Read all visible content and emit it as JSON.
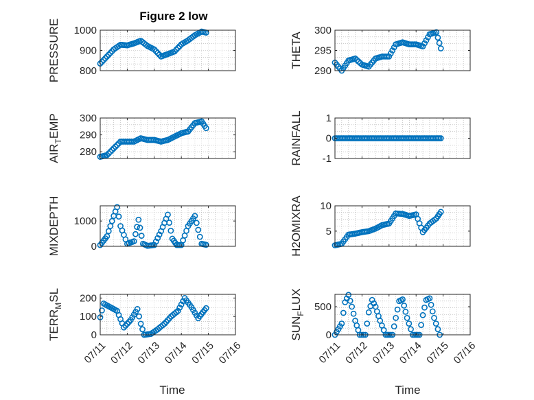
{
  "figure": {
    "title": "Figure 2 low"
  },
  "colors": {
    "marker": "#0072BD",
    "axis": "#262626",
    "grid": "#b0b0b0"
  },
  "chart_data": [
    {
      "id": "pressure",
      "type": "scatter",
      "title": "Figure 2 low",
      "ylabel": "PRESSURE",
      "ylim": [
        800,
        1000
      ],
      "yticks": [
        800,
        900,
        1000
      ],
      "x": [
        "07/11 00:00",
        "07/11 06:00",
        "07/11 12:00",
        "07/11 18:00",
        "07/12 00:00",
        "07/12 06:00",
        "07/12 12:00",
        "07/12 18:00",
        "07/13 00:00",
        "07/13 06:00",
        "07/13 12:00",
        "07/13 18:00",
        "07/14 00:00",
        "07/14 06:00",
        "07/14 12:00",
        "07/14 18:00",
        "07/14 22:00"
      ],
      "y": [
        835,
        870,
        905,
        928,
        925,
        935,
        948,
        922,
        905,
        870,
        882,
        895,
        930,
        950,
        975,
        993,
        988
      ]
    },
    {
      "id": "theta",
      "type": "scatter",
      "ylabel": "THETA",
      "ylim": [
        290,
        300
      ],
      "yticks": [
        290,
        295,
        300
      ],
      "x": [
        "07/11 00:00",
        "07/11 06:00",
        "07/11 12:00",
        "07/11 18:00",
        "07/12 00:00",
        "07/12 06:00",
        "07/12 12:00",
        "07/12 18:00",
        "07/13 00:00",
        "07/13 06:00",
        "07/13 12:00",
        "07/13 18:00",
        "07/14 00:00",
        "07/14 06:00",
        "07/14 12:00",
        "07/14 18:00",
        "07/14 22:00"
      ],
      "y": [
        292,
        290,
        292.5,
        293,
        291.5,
        291,
        293,
        293.5,
        293.5,
        296.5,
        297,
        296.5,
        296.5,
        296,
        299,
        299.5,
        295.5
      ]
    },
    {
      "id": "air_temp",
      "type": "scatter",
      "ylabel": "AIR_TEMP",
      "ylabel_main": "AIR",
      "ylabel_sub": "T",
      "ylabel_rest": "EMP",
      "ylim": [
        276,
        300
      ],
      "yticks": [
        280,
        290,
        300
      ],
      "x": [
        "07/11 00:00",
        "07/11 06:00",
        "07/11 12:00",
        "07/11 18:00",
        "07/12 00:00",
        "07/12 06:00",
        "07/12 12:00",
        "07/12 18:00",
        "07/13 00:00",
        "07/13 06:00",
        "07/13 12:00",
        "07/13 18:00",
        "07/14 00:00",
        "07/14 06:00",
        "07/14 12:00",
        "07/14 18:00",
        "07/14 22:00"
      ],
      "y": [
        277,
        278,
        282,
        286,
        286,
        286,
        288,
        287,
        287,
        286,
        287,
        289,
        291,
        292,
        297,
        298,
        294
      ]
    },
    {
      "id": "rainfall",
      "type": "scatter",
      "ylabel": "RAINFALL",
      "ylim": [
        -1,
        1
      ],
      "yticks": [
        -1,
        0,
        1
      ],
      "x": [
        "07/11 00:00",
        "07/11 06:00",
        "07/11 12:00",
        "07/11 18:00",
        "07/12 00:00",
        "07/12 06:00",
        "07/12 12:00",
        "07/12 18:00",
        "07/13 00:00",
        "07/13 06:00",
        "07/13 12:00",
        "07/13 18:00",
        "07/14 00:00",
        "07/14 06:00",
        "07/14 12:00",
        "07/14 18:00",
        "07/14 22:00"
      ],
      "y": [
        0,
        0,
        0,
        0,
        0,
        0,
        0,
        0,
        0,
        0,
        0,
        0,
        0,
        0,
        0,
        0,
        0
      ]
    },
    {
      "id": "mixdepth",
      "type": "scatter",
      "ylabel": "MIXDEPTH",
      "ylim": [
        0,
        1600
      ],
      "yticks": [
        0,
        1000
      ],
      "x": [
        "07/11 00:00",
        "07/11 06:00",
        "07/11 12:00",
        "07/11 15:00",
        "07/11 18:00",
        "07/12 00:00",
        "07/12 06:00",
        "07/12 10:00",
        "07/12 14:00",
        "07/12 18:00",
        "07/13 00:00",
        "07/13 06:00",
        "07/13 12:00",
        "07/13 16:00",
        "07/13 20:00",
        "07/14 00:00",
        "07/14 06:00",
        "07/14 12:00",
        "07/14 18:00",
        "07/14 22:00"
      ],
      "y": [
        50,
        400,
        1200,
        1550,
        800,
        100,
        200,
        1050,
        100,
        20,
        50,
        600,
        1250,
        300,
        50,
        50,
        800,
        1200,
        100,
        60
      ]
    },
    {
      "id": "h2omixra",
      "type": "scatter",
      "ylabel": "H2OMIXRA",
      "ylim": [
        2,
        10
      ],
      "yticks": [
        5,
        10
      ],
      "x": [
        "07/11 00:00",
        "07/11 06:00",
        "07/11 12:00",
        "07/11 18:00",
        "07/12 00:00",
        "07/12 06:00",
        "07/12 12:00",
        "07/12 18:00",
        "07/13 00:00",
        "07/13 06:00",
        "07/13 12:00",
        "07/13 18:00",
        "07/14 00:00",
        "07/14 06:00",
        "07/14 12:00",
        "07/14 18:00",
        "07/14 22:00"
      ],
      "y": [
        2.2,
        2.5,
        4.3,
        4.5,
        4.8,
        5,
        5.5,
        6.2,
        6.5,
        8.5,
        8.4,
        8.0,
        8.3,
        4.8,
        6.5,
        7.5,
        8.8
      ]
    },
    {
      "id": "terr_msl",
      "type": "scatter",
      "ylabel": "TERR_MSL",
      "ylabel_main": "TERR",
      "ylabel_sub": "M",
      "ylabel_rest": "SL",
      "ylim": [
        0,
        220
      ],
      "yticks": [
        0,
        100,
        200
      ],
      "x": [
        "07/11 00:00",
        "07/11 03:00",
        "07/11 09:00",
        "07/11 15:00",
        "07/11 21:00",
        "07/12 03:00",
        "07/12 09:00",
        "07/12 12:00",
        "07/12 15:00",
        "07/12 21:00",
        "07/13 03:00",
        "07/13 09:00",
        "07/13 15:00",
        "07/13 21:00",
        "07/14 03:00",
        "07/14 09:00",
        "07/14 15:00",
        "07/14 22:00"
      ],
      "y": [
        95,
        170,
        150,
        130,
        40,
        80,
        140,
        60,
        0,
        5,
        30,
        60,
        100,
        130,
        200,
        150,
        90,
        145
      ]
    },
    {
      "id": "sun_flux",
      "type": "scatter",
      "ylabel": "SUN_FLUX",
      "ylabel_main": "SUN",
      "ylabel_sub": "F",
      "ylabel_rest": "LUX",
      "ylim": [
        0,
        720
      ],
      "yticks": [
        0,
        500
      ],
      "x": [
        "07/11 00:00",
        "07/11 06:00",
        "07/11 09:00",
        "07/11 12:00",
        "07/11 15:00",
        "07/11 18:00",
        "07/11 22:00",
        "07/12 03:00",
        "07/12 06:00",
        "07/12 09:00",
        "07/12 12:00",
        "07/12 16:00",
        "07/12 21:00",
        "07/13 03:00",
        "07/13 06:00",
        "07/13 09:00",
        "07/13 12:00",
        "07/13 16:00",
        "07/13 21:00",
        "07/14 03:00",
        "07/14 06:00",
        "07/14 09:00",
        "07/14 12:00",
        "07/14 16:00",
        "07/14 21:00"
      ],
      "y": [
        0,
        200,
        580,
        710,
        500,
        250,
        0,
        0,
        400,
        620,
        500,
        250,
        0,
        0,
        300,
        600,
        630,
        300,
        0,
        0,
        350,
        620,
        650,
        300,
        0
      ]
    }
  ],
  "x_axis": {
    "label": "Time",
    "ticks": [
      "07/11",
      "07/12",
      "07/13",
      "07/14",
      "07/15",
      "07/16"
    ],
    "tick_dates": [
      "07/11 00:00",
      "07/12 00:00",
      "07/13 00:00",
      "07/14 00:00",
      "07/15 00:00",
      "07/16 00:00"
    ],
    "xlim": [
      "07/11 00:00",
      "07/16 00:00"
    ],
    "grid": "minor-dotted"
  }
}
